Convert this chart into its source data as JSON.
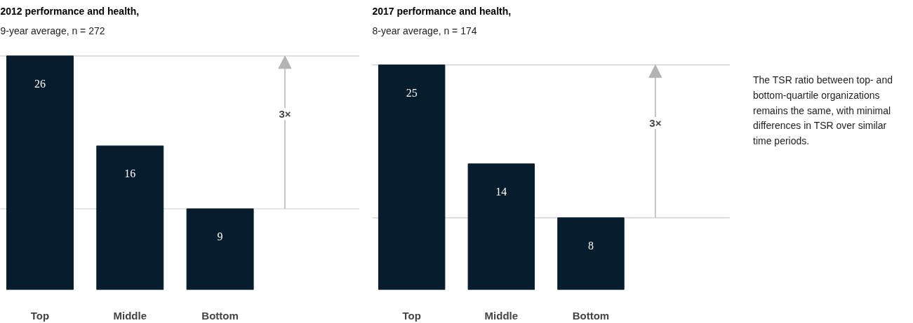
{
  "chart_data": [
    {
      "type": "bar",
      "title": "2012 performance and health,",
      "subtitle": "9-year average, n = 272",
      "categories": [
        "Top",
        "Middle",
        "Bottom"
      ],
      "values": [
        26,
        16,
        9
      ],
      "color": "#071c2c",
      "data_labels": true,
      "ref_lines": [
        {
          "axis": "y",
          "value": 26,
          "color": "#cccccc"
        },
        {
          "axis": "y",
          "value": 9,
          "color": "#cccccc"
        }
      ],
      "annotations": [
        "3×"
      ]
    },
    {
      "type": "bar",
      "title": "2017 performance and health,",
      "subtitle": "8-year average, n = 174",
      "categories": [
        "Top",
        "Middle",
        "Bottom"
      ],
      "values": [
        25,
        14,
        8
      ],
      "color": "#071c2c",
      "data_labels": true,
      "ref_lines": [
        {
          "axis": "y",
          "value": 25,
          "color": "#cccccc"
        },
        {
          "axis": "y",
          "value": 8,
          "color": "#cccccc"
        }
      ],
      "annotations": [
        "3×",
        "The TSR ratio between top- and bottom-quartile organizations remains the same, with minimal differences in TSR over similar time periods."
      ]
    }
  ]
}
